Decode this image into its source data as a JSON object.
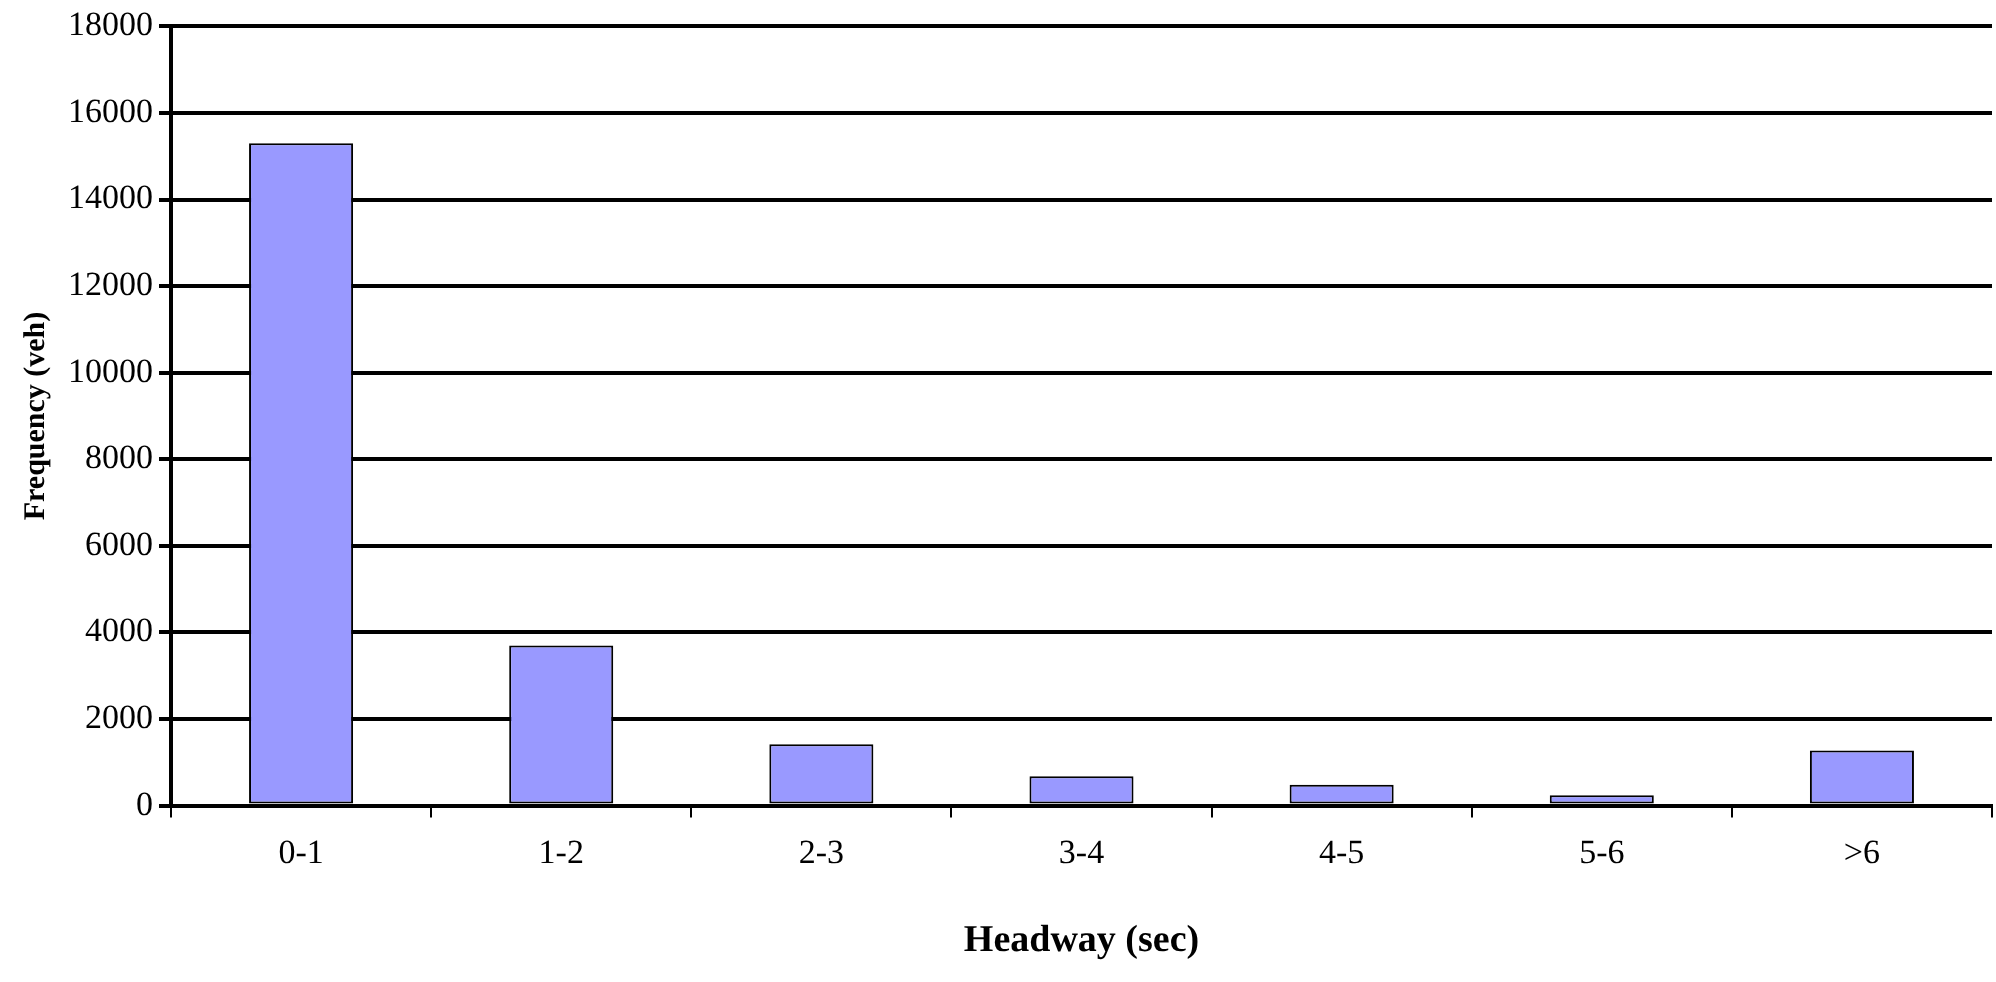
{
  "chart_data": {
    "type": "bar",
    "xlabel": "Headway (sec)",
    "ylabel": "Frequency (veh)",
    "categories": [
      "0-1",
      "1-2",
      "2-3",
      "3-4",
      "4-5",
      "5-6",
      ">6"
    ],
    "values": [
      15300,
      3700,
      1420,
      680,
      480,
      240,
      1270
    ],
    "color": "#9999ff",
    "ylim": [
      0,
      18000
    ],
    "yticks": [
      0,
      2000,
      4000,
      6000,
      8000,
      10000,
      12000,
      14000,
      16000,
      18000
    ],
    "grid": "y",
    "legend": false
  }
}
